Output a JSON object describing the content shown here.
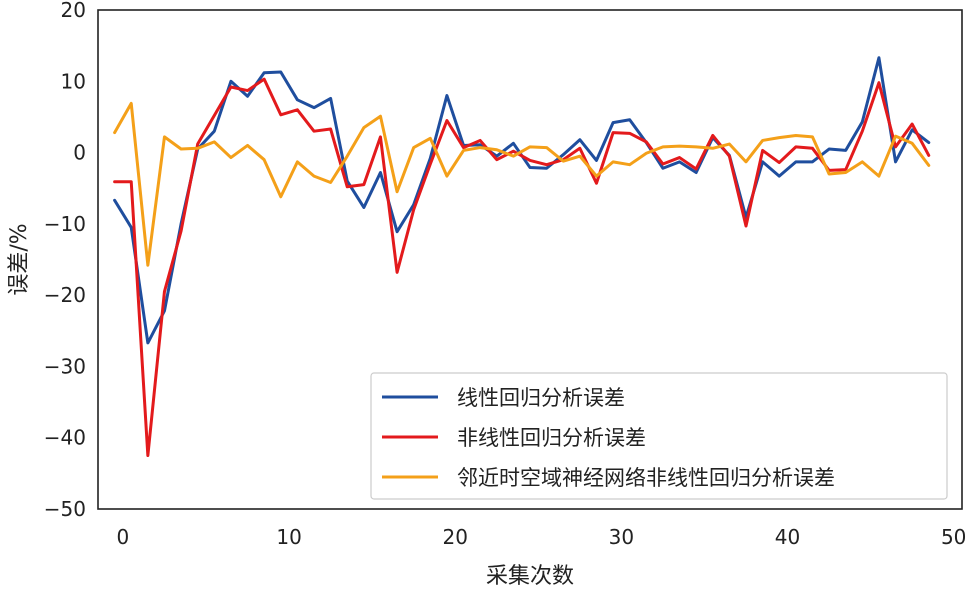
{
  "chart_data": {
    "type": "line",
    "xlabel": "采集次数",
    "ylabel": "误差/%",
    "xlim": [
      -1.5,
      50.5
    ],
    "ylim": [
      -50,
      20
    ],
    "xticks": [
      0,
      10,
      20,
      30,
      40,
      50
    ],
    "yticks": [
      20,
      10,
      0,
      -10,
      -20,
      -30,
      -40,
      -50
    ],
    "ytick_labels": [
      "20",
      "10",
      "0",
      "−10",
      "−20",
      "−30",
      "−40",
      "−50"
    ],
    "grid": false,
    "legend_position": "lower-right",
    "x": [
      -0.5,
      0.5,
      1.5,
      2.5,
      3.5,
      4.5,
      5.5,
      6.5,
      7.5,
      8.5,
      9.5,
      10.5,
      11.5,
      12.5,
      13.5,
      14.5,
      15.5,
      16.5,
      17.5,
      18.5,
      19.5,
      20.5,
      21.5,
      22.5,
      23.5,
      24.5,
      25.5,
      26.5,
      27.5,
      28.5,
      29.5,
      30.5,
      31.5,
      32.5,
      33.5,
      34.5,
      35.5,
      36.5,
      37.5,
      38.5,
      39.5,
      40.5,
      41.5,
      42.5,
      43.5,
      44.5,
      45.5,
      46.5,
      47.5,
      48.5
    ],
    "series": [
      {
        "name": "线性回归分析误差",
        "color": "#1f4e9e",
        "values": [
          -6.7,
          -10.5,
          -26.7,
          -22.2,
          -10,
          0.5,
          3.0,
          10.0,
          7.9,
          11.2,
          11.3,
          7.4,
          6.3,
          7.6,
          -4.0,
          -7.7,
          -2.8,
          -11.1,
          -7.3,
          -0.8,
          8.0,
          1.0,
          1.1,
          -0.5,
          1.3,
          -2.1,
          -2.2,
          -0.3,
          1.8,
          -1.1,
          4.2,
          4.6,
          1.4,
          -2.2,
          -1.3,
          -2.8,
          2.1,
          -0.4,
          -9.1,
          -1.3,
          -3.3,
          -1.3,
          -1.3,
          0.5,
          0.3,
          4.3,
          13.3,
          -1.3,
          3.2,
          1.4
        ]
      },
      {
        "name": "非线性回归分析误差",
        "color": "#e31a1c",
        "values": [
          -4.1,
          -4.1,
          -42.5,
          -19.5,
          -11,
          1.2,
          5.2,
          9.2,
          8.7,
          10.3,
          5.3,
          6.0,
          3.0,
          3.3,
          -4.8,
          -4.5,
          2.2,
          -16.8,
          -8,
          -1.6,
          4.5,
          0.7,
          1.7,
          -1.0,
          0.2,
          -1.1,
          -1.7,
          -1.0,
          0.6,
          -4.3,
          2.8,
          2.7,
          1.5,
          -1.6,
          -0.7,
          -2.3,
          2.4,
          -0.5,
          -10.3,
          0.3,
          -1.4,
          0.8,
          0.6,
          -2.5,
          -2.4,
          3.0,
          9.8,
          0.8,
          4.0,
          -0.4
        ]
      },
      {
        "name": "邻近时空域神经网络非线性回归分析误差",
        "color": "#f4a019",
        "values": [
          2.8,
          6.9,
          -15.8,
          2.2,
          0.5,
          0.6,
          1.5,
          -0.7,
          1.0,
          -1.0,
          -6.2,
          -1.3,
          -3.3,
          -4.2,
          -0.5,
          3.5,
          5.1,
          -5.5,
          0.7,
          2.0,
          -3.3,
          0.3,
          0.7,
          0.4,
          -0.5,
          0.8,
          0.7,
          -1.2,
          -0.5,
          -3.3,
          -1.3,
          -1.7,
          -0.1,
          0.8,
          0.9,
          0.8,
          0.6,
          1.2,
          -1.3,
          1.7,
          2.1,
          2.4,
          2.2,
          -3.0,
          -2.8,
          -1.3,
          -3.3,
          2.3,
          1.3,
          -1.8
        ]
      }
    ]
  }
}
